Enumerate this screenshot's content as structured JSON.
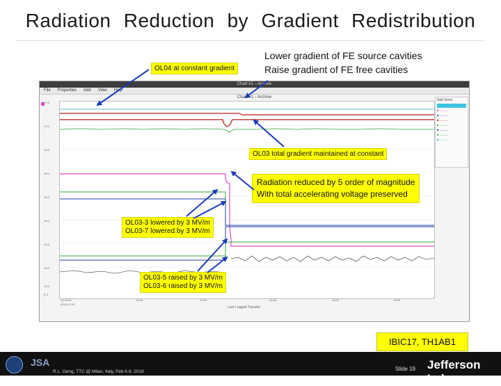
{
  "title": "Radiation Reduction by Gradient Redistribution",
  "top_label": {
    "line1": "Lower gradient of FE source cavities",
    "line2": "Raise gradient of FE free cavities"
  },
  "callouts": {
    "ol04": "OL04 at constant gradient",
    "ol03_total": "OL03 total gradient maintained at constant",
    "radiation_line1": "Radiation reduced by 5 order of magnitude",
    "radiation_line2": "With total accelerating voltage preserved",
    "lowered_line1": "OL03-3 lowered by 3 MV/m",
    "lowered_line2": "OL03-7 lowered by 3 MV/m",
    "raised_line1": "OL03-5 raised by 3 MV/m",
    "raised_line2": "OL03-6 raised by 3 MV/m"
  },
  "screenshot": {
    "window_title": "Chart #1 – Archive",
    "menu": [
      "File",
      "Properties",
      "Add",
      "View",
      "Help"
    ],
    "chart_title": "Chart #1 – Archive",
    "legend_header": "Add Items",
    "x_axis_label": "Last Logged Transfer",
    "x_start_date": "2016-11-09",
    "x_ticks": [
      "14:42:00",
      "14:45",
      "14:50",
      "14:55",
      "15:00",
      "15:05"
    ],
    "y_ticks": [
      "17.5",
      "17.0",
      "16.5",
      "16.0",
      "15.5",
      "15.0",
      "14.5",
      "14.0",
      "13.5",
      "E-1"
    ]
  },
  "badge": "IBIC17, TH1AB1",
  "footer": {
    "presenter": "R.L. Geng, TTC @ Milan, Italy, Feb 6-9, 2018",
    "slide": "Slide 19",
    "logo_text": "Jefferson Lab",
    "jsa": "JSA"
  },
  "colors": {
    "callout_bg": "#ffff00",
    "arrow": "#1a3bb8",
    "footer_bg": "#111111",
    "trace_magenta": "#d94ac9",
    "trace_red": "#b01818",
    "trace_green": "#2fa53a",
    "trace_blue": "#1c3fa0",
    "trace_cyan": "#23a9c9",
    "trace_dark": "#202020"
  }
}
